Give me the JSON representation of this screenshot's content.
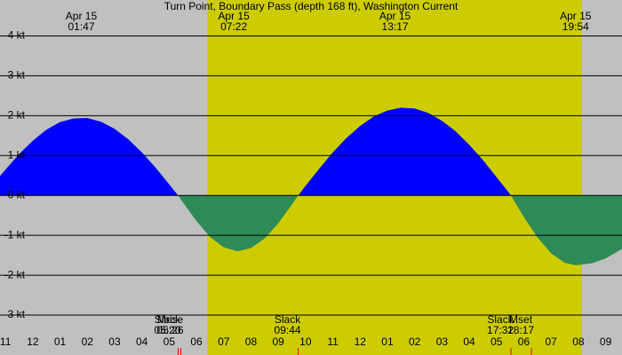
{
  "chart_data": {
    "type": "area",
    "title": "Turn Point, Boundary Pass (depth 168 ft), Washington Current",
    "x": [
      -1.2,
      -0.5,
      0,
      0.5,
      1,
      1.5,
      2,
      2.5,
      3,
      3.5,
      4,
      4.5,
      5,
      5.33,
      5.5,
      6,
      6.5,
      7,
      7.5,
      8,
      8.5,
      9,
      9.5,
      9.73,
      10,
      10.5,
      11,
      11.5,
      12,
      12.5,
      13,
      13.5,
      14,
      14.5,
      15,
      15.5,
      16,
      16.5,
      17,
      17.5,
      17.53,
      18,
      18.5,
      19,
      19.5,
      19.9,
      20.5,
      21,
      21.6
    ],
    "series": [
      {
        "color": "#0000ff",
        "negative_color": "#2e8b57",
        "values": [
          0.49,
          1.04,
          1.37,
          1.65,
          1.84,
          1.93,
          1.94,
          1.85,
          1.67,
          1.41,
          1.08,
          0.7,
          0.28,
          0,
          -0.17,
          -0.64,
          -1.04,
          -1.3,
          -1.4,
          -1.32,
          -1.08,
          -0.7,
          -0.23,
          0,
          0.24,
          0.67,
          1.08,
          1.44,
          1.74,
          1.98,
          2.13,
          2.2,
          2.18,
          2.07,
          1.87,
          1.61,
          1.27,
          0.89,
          0.46,
          0.03,
          0,
          -0.54,
          -1.05,
          -1.45,
          -1.69,
          -1.75,
          -1.7,
          -1.58,
          -1.34
        ]
      }
    ],
    "xlim": [
      -1.2,
      21.6
    ],
    "ylim": [
      -4.0,
      4.9
    ],
    "yticks": [
      {
        "value": 4,
        "label": "4 kt"
      },
      {
        "value": 3,
        "label": "3 kt"
      },
      {
        "value": 2,
        "label": "2 kt"
      },
      {
        "value": 1,
        "label": "1 kt"
      },
      {
        "value": 0,
        "label": "0 kt"
      },
      {
        "value": -1,
        "label": "-1 kt"
      },
      {
        "value": -2,
        "label": "-2 kt"
      },
      {
        "value": -3,
        "label": "-3 kt"
      }
    ],
    "xticks": [
      {
        "value": -1,
        "label": "11"
      },
      {
        "value": 0,
        "label": "12"
      },
      {
        "value": 1,
        "label": "01"
      },
      {
        "value": 2,
        "label": "02"
      },
      {
        "value": 3,
        "label": "03"
      },
      {
        "value": 4,
        "label": "04"
      },
      {
        "value": 5,
        "label": "05"
      },
      {
        "value": 6,
        "label": "06"
      },
      {
        "value": 7,
        "label": "07"
      },
      {
        "value": 8,
        "label": "08"
      },
      {
        "value": 9,
        "label": "09"
      },
      10,
      11,
      12,
      {
        "value": 13,
        "label": "01"
      },
      {
        "value": 14,
        "label": "02"
      },
      {
        "value": 15,
        "label": "03"
      },
      {
        "value": 16,
        "label": "04"
      },
      {
        "value": 17,
        "label": "05"
      },
      {
        "value": 18,
        "label": "06"
      },
      {
        "value": 19,
        "label": "07"
      },
      {
        "value": 20,
        "label": "08"
      },
      {
        "value": 21,
        "label": "09"
      }
    ],
    "grid": true,
    "background_color": "#c0c0c0",
    "daylight": [
      6.39,
      20.13
    ],
    "daylight_color": "#cccc00",
    "top_annotations": [
      {
        "date": "Apr 15",
        "time": "01:47",
        "x": 1.78
      },
      {
        "date": "Apr 15",
        "time": "07:22",
        "x": 7.37
      },
      {
        "date": "Apr 15",
        "time": "13:17",
        "x": 13.28
      },
      {
        "date": "Apr 15",
        "time": "19:54",
        "x": 19.9
      }
    ],
    "bottom_annotations": [
      {
        "label": "Slack",
        "time": "05:20",
        "x": 5.33
      },
      {
        "label": "Mrise",
        "time": "05:26",
        "x": 5.43
      },
      {
        "label": "Slack",
        "time": "09:44",
        "x": 9.73
      },
      {
        "label": "Slack",
        "time": "17:32",
        "x": 17.53
      },
      {
        "label": "Mset",
        "time": "18:17",
        "x": 18.28
      }
    ]
  }
}
